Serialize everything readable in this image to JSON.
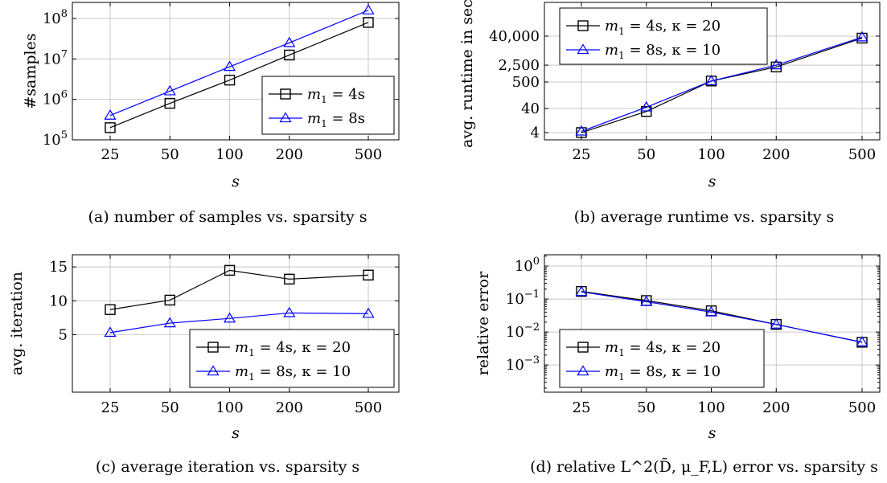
{
  "chart_data": [
    {
      "type": "line",
      "panel": "a",
      "caption": "(a) number of samples vs. sparsity s",
      "xlabel": "s",
      "ylabel": "#samples",
      "xscale": "log",
      "yscale": "log",
      "categories": [
        "25",
        "50",
        "100",
        "200",
        "500"
      ],
      "x": [
        25,
        50,
        100,
        200,
        500
      ],
      "yticks": [
        100000,
        1000000,
        10000000,
        100000000
      ],
      "yticklabels": [
        "10^5",
        "10^6",
        "10^7",
        "10^8"
      ],
      "ylim": [
        100000,
        250000000
      ],
      "legend": "bottom-right",
      "grid": true,
      "series": [
        {
          "name": "m_1 = 4s",
          "color": "#000000",
          "marker": "square",
          "values": [
            200000,
            800000,
            3000000,
            12500000,
            80000000
          ]
        },
        {
          "name": "m_1 = 8s",
          "color": "#0000ff",
          "marker": "triangle",
          "values": [
            400000,
            1600000,
            6400000,
            25000000,
            160000000
          ]
        }
      ]
    },
    {
      "type": "line",
      "panel": "b",
      "caption": "(b) average runtime vs. sparsity s",
      "xlabel": "s",
      "ylabel": "avg. runtime in sec.",
      "xscale": "log",
      "yscale": "log",
      "categories": [
        "25",
        "50",
        "100",
        "200",
        "500"
      ],
      "x": [
        25,
        50,
        100,
        200,
        500
      ],
      "yticks": [
        4,
        40,
        500,
        2500,
        40000
      ],
      "yticklabels": [
        "4",
        "40",
        "500",
        "2,500",
        "40,000"
      ],
      "ylim": [
        2,
        1000000
      ],
      "legend": "top-left",
      "grid": true,
      "series": [
        {
          "name": "m_1 = 4s, κ = 20",
          "color": "#000000",
          "marker": "square",
          "values": [
            4,
            30,
            550,
            2100,
            33000
          ]
        },
        {
          "name": "m_1 = 8s, κ = 10",
          "color": "#0000ff",
          "marker": "triangle",
          "values": [
            4.5,
            45,
            550,
            2500,
            36000
          ]
        }
      ]
    },
    {
      "type": "line",
      "panel": "c",
      "caption": "(c) average iteration vs. sparsity s",
      "xlabel": "s",
      "ylabel": "avg. iteration",
      "xscale": "log",
      "yscale": "linear",
      "categories": [
        "25",
        "50",
        "100",
        "200",
        "500"
      ],
      "x": [
        25,
        50,
        100,
        200,
        500
      ],
      "yticks": [
        5,
        10,
        15
      ],
      "yticklabels": [
        "5",
        "10",
        "15"
      ],
      "ylim": [
        -3.5,
        16.8
      ],
      "legend": "bottom-right",
      "grid": true,
      "series": [
        {
          "name": "m_1 = 4s, κ = 20",
          "color": "#000000",
          "marker": "square",
          "values": [
            8.7,
            10.1,
            14.5,
            13.2,
            13.8
          ]
        },
        {
          "name": "m_1 = 8s, κ = 10",
          "color": "#0000ff",
          "marker": "triangle",
          "values": [
            5.3,
            6.7,
            7.4,
            8.2,
            8.1
          ]
        }
      ]
    },
    {
      "type": "line",
      "panel": "d",
      "caption": "(d) relative L^2(D̃, μ_F,L) error vs. sparsity s",
      "xlabel": "s",
      "ylabel": "relative error",
      "xscale": "log",
      "yscale": "log",
      "categories": [
        "25",
        "50",
        "100",
        "200",
        "500"
      ],
      "x": [
        25,
        50,
        100,
        200,
        500
      ],
      "yticks": [
        0.001,
        0.01,
        0.1,
        1
      ],
      "yticklabels": [
        "10^-3",
        "10^-2",
        "10^-1",
        "10^0"
      ],
      "ylim": [
        0.00015,
        2.2
      ],
      "legend": "bottom-left",
      "grid": true,
      "series": [
        {
          "name": "m_1 = 4s, κ = 20",
          "color": "#000000",
          "marker": "square",
          "values": [
            0.17,
            0.09,
            0.044,
            0.017,
            0.0049
          ]
        },
        {
          "name": "m_1 = 8s, κ = 10",
          "color": "#0000ff",
          "marker": "triangle",
          "values": [
            0.165,
            0.083,
            0.04,
            0.017,
            0.0049
          ]
        }
      ]
    }
  ]
}
